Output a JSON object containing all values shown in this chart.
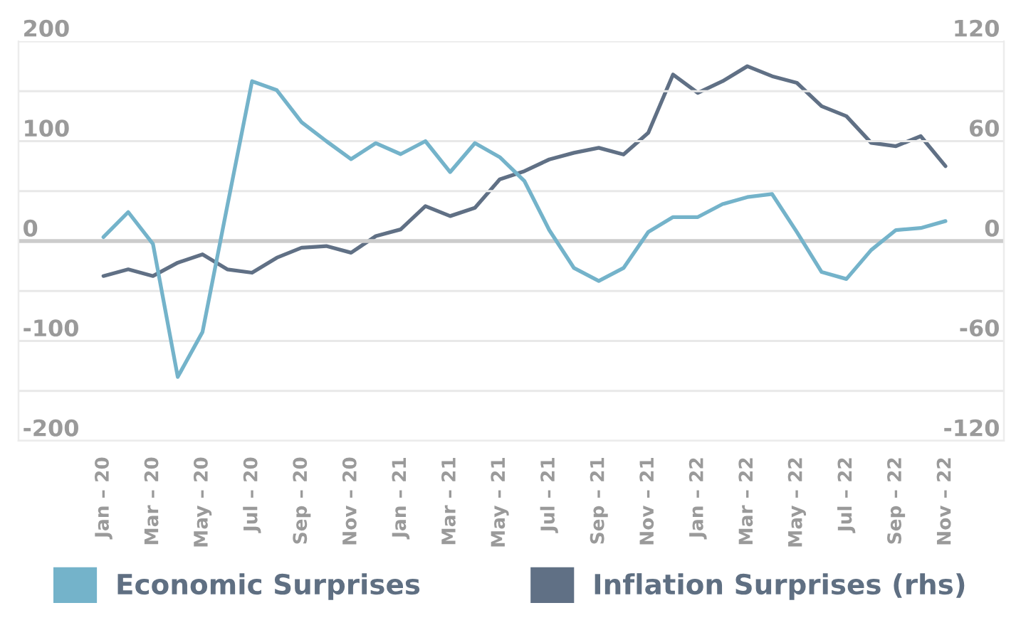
{
  "chart_data": {
    "type": "line",
    "categories": [
      "Jan – 20",
      null,
      "Mar – 20",
      null,
      "May – 20",
      null,
      "Jul – 20",
      null,
      "Sep – 20",
      null,
      "Nov – 20",
      null,
      "Jan – 21",
      null,
      "Mar – 21",
      null,
      "May – 21",
      null,
      "Jul – 21",
      null,
      "Sep – 21",
      null,
      "Nov – 21",
      null,
      "Jan – 22",
      null,
      "Mar – 22",
      null,
      "May – 22",
      null,
      "Jul – 22",
      null,
      "Sep – 22",
      null,
      "Nov – 22"
    ],
    "series": [
      {
        "name": "Economic Surprises",
        "color": "#74b3ca",
        "values": [
          4,
          29,
          -3,
          -136,
          -91,
          35,
          160,
          151,
          119,
          100,
          82,
          98,
          87,
          100,
          69,
          98,
          84,
          60,
          11,
          -27,
          -40,
          -27,
          9,
          24,
          24,
          37,
          44,
          47,
          9,
          -31,
          -38,
          -9,
          11,
          13,
          20
        ]
      },
      {
        "name": "Inflation Surprises (rhs)",
        "color": "#607085",
        "axis": "y2",
        "values": [
          -21,
          -17,
          -21,
          -13,
          -8,
          -17,
          -19,
          -10,
          -4,
          -3,
          -7,
          3,
          7,
          21,
          15,
          20,
          37,
          42,
          49,
          53,
          56,
          52,
          65,
          100,
          89,
          96,
          105,
          99,
          95,
          81,
          75,
          59,
          57,
          63,
          45
        ]
      }
    ],
    "ylim": [
      -200,
      200
    ],
    "yticks": [
      -200,
      {
        "value": -150,
        "label": null
      },
      -100,
      {
        "value": -50,
        "label": null
      },
      0,
      {
        "value": 50,
        "label": null
      },
      100,
      {
        "value": 150,
        "label": null
      },
      200
    ],
    "y2lim": [
      -120,
      120
    ],
    "y2ticks": [
      -120,
      -60,
      0,
      60,
      120
    ],
    "grid": "y",
    "ref_lines": [
      {
        "axis": "y",
        "value": 0,
        "color": "#cccccc"
      }
    ],
    "legend": "bottom"
  }
}
